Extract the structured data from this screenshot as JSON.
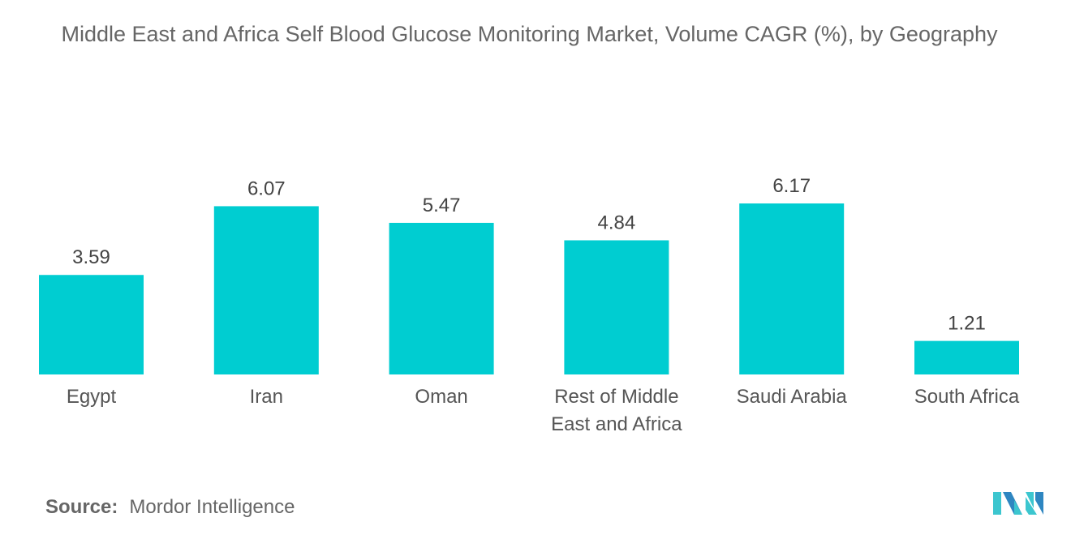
{
  "chart_data": {
    "type": "bar",
    "title": "Middle East and Africa Self Blood Glucose Monitoring Market, Volume CAGR (%), by Geography",
    "categories": [
      "Egypt",
      "Iran",
      "Oman",
      "Rest of Middle East and Africa",
      "Saudi Arabia",
      "South Africa"
    ],
    "category_lines": [
      [
        "Egypt"
      ],
      [
        "Iran"
      ],
      [
        "Oman"
      ],
      [
        "Rest of Middle",
        "East and Africa"
      ],
      [
        "Saudi Arabia"
      ],
      [
        "South Africa"
      ]
    ],
    "values": [
      3.59,
      6.07,
      5.47,
      4.84,
      6.17,
      1.21
    ],
    "value_labels": [
      "3.59",
      "6.07",
      "5.47",
      "4.84",
      "6.17",
      "1.21"
    ],
    "xlabel": "",
    "ylabel": "",
    "ylim": [
      0,
      6.17
    ],
    "grid": false,
    "legend": "none",
    "bar_color": "#00CDD1"
  },
  "source": {
    "label": "Source:",
    "value": "Mordor Intelligence"
  },
  "logo": {
    "text": "Mordor Intelligence",
    "colors": [
      "#3CC6CF",
      "#2E86C1"
    ]
  }
}
